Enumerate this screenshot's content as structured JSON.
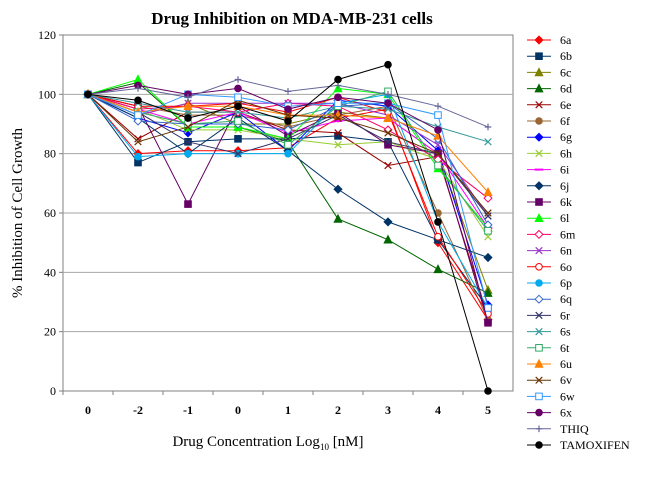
{
  "chart_data": {
    "type": "line",
    "title": "Drug Inhibition  on MDA-MB-231 cells",
    "xlabel_main": "Drug Concentration Log",
    "xlabel_sub": "10",
    "xlabel_unit": " [nM]",
    "ylabel": "% Inhibition of Cell Growth",
    "categories": [
      "0",
      "-2",
      "-1",
      "0",
      "1",
      "2",
      "3",
      "4",
      "5"
    ],
    "ylim": [
      0,
      120
    ],
    "yticks": [
      "0",
      "20",
      "40",
      "60",
      "80",
      "100",
      "120"
    ],
    "grid": true,
    "legend_position": "right",
    "series": [
      {
        "name": "6a",
        "color": "#ff0000",
        "marker": "diamond",
        "fill": "#ff0000",
        "values": [
          100,
          80,
          81,
          81,
          82,
          92,
          95,
          50,
          24
        ]
      },
      {
        "name": "6b",
        "color": "#003366",
        "marker": "square",
        "fill": "#003366",
        "values": [
          100,
          77,
          84,
          85,
          85,
          86,
          84,
          51,
          28
        ]
      },
      {
        "name": "6c",
        "color": "#808000",
        "marker": "triangle",
        "fill": "#808000",
        "values": [
          100,
          93,
          97,
          90,
          90,
          94,
          92,
          80,
          34
        ]
      },
      {
        "name": "6d",
        "color": "#006600",
        "marker": "triangle",
        "fill": "#006600",
        "values": [
          100,
          104,
          89,
          89,
          84,
          58,
          51,
          41,
          33
        ]
      },
      {
        "name": "6e",
        "color": "#990000",
        "marker": "x",
        "fill": "none",
        "values": [
          100,
          85,
          94,
          94,
          88,
          87,
          76,
          79,
          25
        ]
      },
      {
        "name": "6f",
        "color": "#996633",
        "marker": "circle",
        "fill": "#996633",
        "values": [
          100,
          96,
          93,
          93,
          89,
          93,
          96,
          60,
          24
        ]
      },
      {
        "name": "6g",
        "color": "#0000ff",
        "marker": "diamond",
        "fill": "#0000ff",
        "values": [
          100,
          92,
          87,
          94,
          81,
          98,
          96,
          81,
          29
        ]
      },
      {
        "name": "6h",
        "color": "#99cc33",
        "marker": "x",
        "fill": "none",
        "values": [
          100,
          95,
          88,
          88,
          85,
          83,
          84,
          78,
          52
        ]
      },
      {
        "name": "6i",
        "color": "#ff00ff",
        "marker": "dash",
        "fill": "none",
        "values": [
          100,
          95,
          90,
          94,
          87,
          91,
          92,
          80,
          55
        ]
      },
      {
        "name": "6j",
        "color": "#003366",
        "marker": "diamond",
        "fill": "#003366",
        "values": [
          100,
          92,
          80,
          92,
          81,
          68,
          57,
          51,
          45
        ]
      },
      {
        "name": "6k",
        "color": "#660066",
        "marker": "square",
        "fill": "#660066",
        "values": [
          100,
          96,
          63,
          96,
          86,
          94,
          83,
          80,
          23
        ]
      },
      {
        "name": "6l",
        "color": "#00ff00",
        "marker": "triangle",
        "fill": "#00ff00",
        "values": [
          100,
          105,
          89,
          89,
          85,
          102,
          100,
          75,
          55
        ]
      },
      {
        "name": "6m",
        "color": "#ff0066",
        "marker": "diamond",
        "fill": "none",
        "values": [
          100,
          95,
          96,
          94,
          97,
          96,
          88,
          78,
          65
        ]
      },
      {
        "name": "6n",
        "color": "#9933cc",
        "marker": "x",
        "fill": "none",
        "values": [
          100,
          93,
          97,
          97,
          97,
          97,
          93,
          83,
          59
        ]
      },
      {
        "name": "6o",
        "color": "#ff0000",
        "marker": "circle",
        "fill": "none",
        "values": [
          100,
          96,
          96,
          97,
          94,
          99,
          94,
          52,
          26
        ]
      },
      {
        "name": "6p",
        "color": "#00aaee",
        "marker": "circle",
        "fill": "#00aaee",
        "values": [
          100,
          79,
          80,
          80,
          80,
          97,
          100,
          57,
          28
        ]
      },
      {
        "name": "6q",
        "color": "#3366cc",
        "marker": "diamond",
        "fill": "none",
        "values": [
          100,
          91,
          90,
          90,
          88,
          96,
          97,
          85,
          56
        ]
      },
      {
        "name": "6r",
        "color": "#333366",
        "marker": "x",
        "fill": "none",
        "values": [
          100,
          94,
          84,
          80,
          85,
          93,
          84,
          80,
          59
        ]
      },
      {
        "name": "6s",
        "color": "#339999",
        "marker": "x",
        "fill": "none",
        "values": [
          100,
          97,
          94,
          94,
          92,
          96,
          95,
          89,
          84
        ]
      },
      {
        "name": "6t",
        "color": "#33aa66",
        "marker": "square",
        "fill": "none",
        "values": [
          100,
          94,
          90,
          91,
          83,
          96,
          101,
          76,
          54
        ]
      },
      {
        "name": "6u",
        "color": "#ff8000",
        "marker": "triangle",
        "fill": "#ff8000",
        "values": [
          100,
          94,
          96,
          96,
          93,
          93,
          92,
          86,
          67
        ]
      },
      {
        "name": "6v",
        "color": "#663300",
        "marker": "x",
        "fill": "none",
        "values": [
          100,
          84,
          89,
          98,
          93,
          92,
          87,
          80,
          60
        ]
      },
      {
        "name": "6w",
        "color": "#3399ff",
        "marker": "square",
        "fill": "none",
        "values": [
          100,
          93,
          100,
          99,
          96,
          97,
          97,
          93,
          28
        ]
      },
      {
        "name": "6x",
        "color": "#660066",
        "marker": "circle",
        "fill": "#660066",
        "values": [
          100,
          103,
          100,
          102,
          95,
          99,
          97,
          88,
          23
        ]
      },
      {
        "name": "THIQ",
        "color": "#666699",
        "marker": "plus",
        "fill": "none",
        "values": [
          100,
          102,
          99,
          105,
          101,
          103,
          100,
          96,
          89
        ]
      },
      {
        "name": "TAMOXIFEN",
        "color": "#000000",
        "marker": "circle",
        "fill": "#000000",
        "values": [
          100,
          98,
          92,
          96,
          91,
          105,
          110,
          57,
          0
        ]
      }
    ]
  }
}
